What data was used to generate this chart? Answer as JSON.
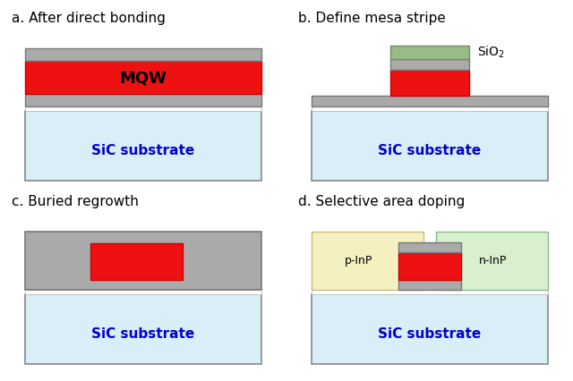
{
  "bg_color": "#ffffff",
  "title_color": "#000000",
  "label_color": "#0000cc",
  "sio2_label_color": "#000000",
  "panel_titles": [
    "a. After direct bonding",
    "b. Define mesa stripe",
    "c. Buried regrowth",
    "d. Selective area doping"
  ],
  "colors": {
    "sic_substrate": "#daeef8",
    "sic_border": "#888888",
    "mqw_red": "#ee1111",
    "mqw_border": "#cc0000",
    "gray_layer": "#aaaaaa",
    "gray_border": "#777777",
    "white_layer": "#ffffff",
    "white_border": "#bbbbbb",
    "sio2_green": "#99bb88",
    "sio2_border": "#778866",
    "p_inp": "#f5f0c0",
    "p_inp_border": "#ccbb88",
    "n_inp": "#d8f0d0",
    "n_inp_border": "#88bb88"
  },
  "font_sizes": {
    "panel_title": 11,
    "label_mqw": 13,
    "label_sic": 11,
    "label_sio2": 10,
    "label_inp": 9
  }
}
